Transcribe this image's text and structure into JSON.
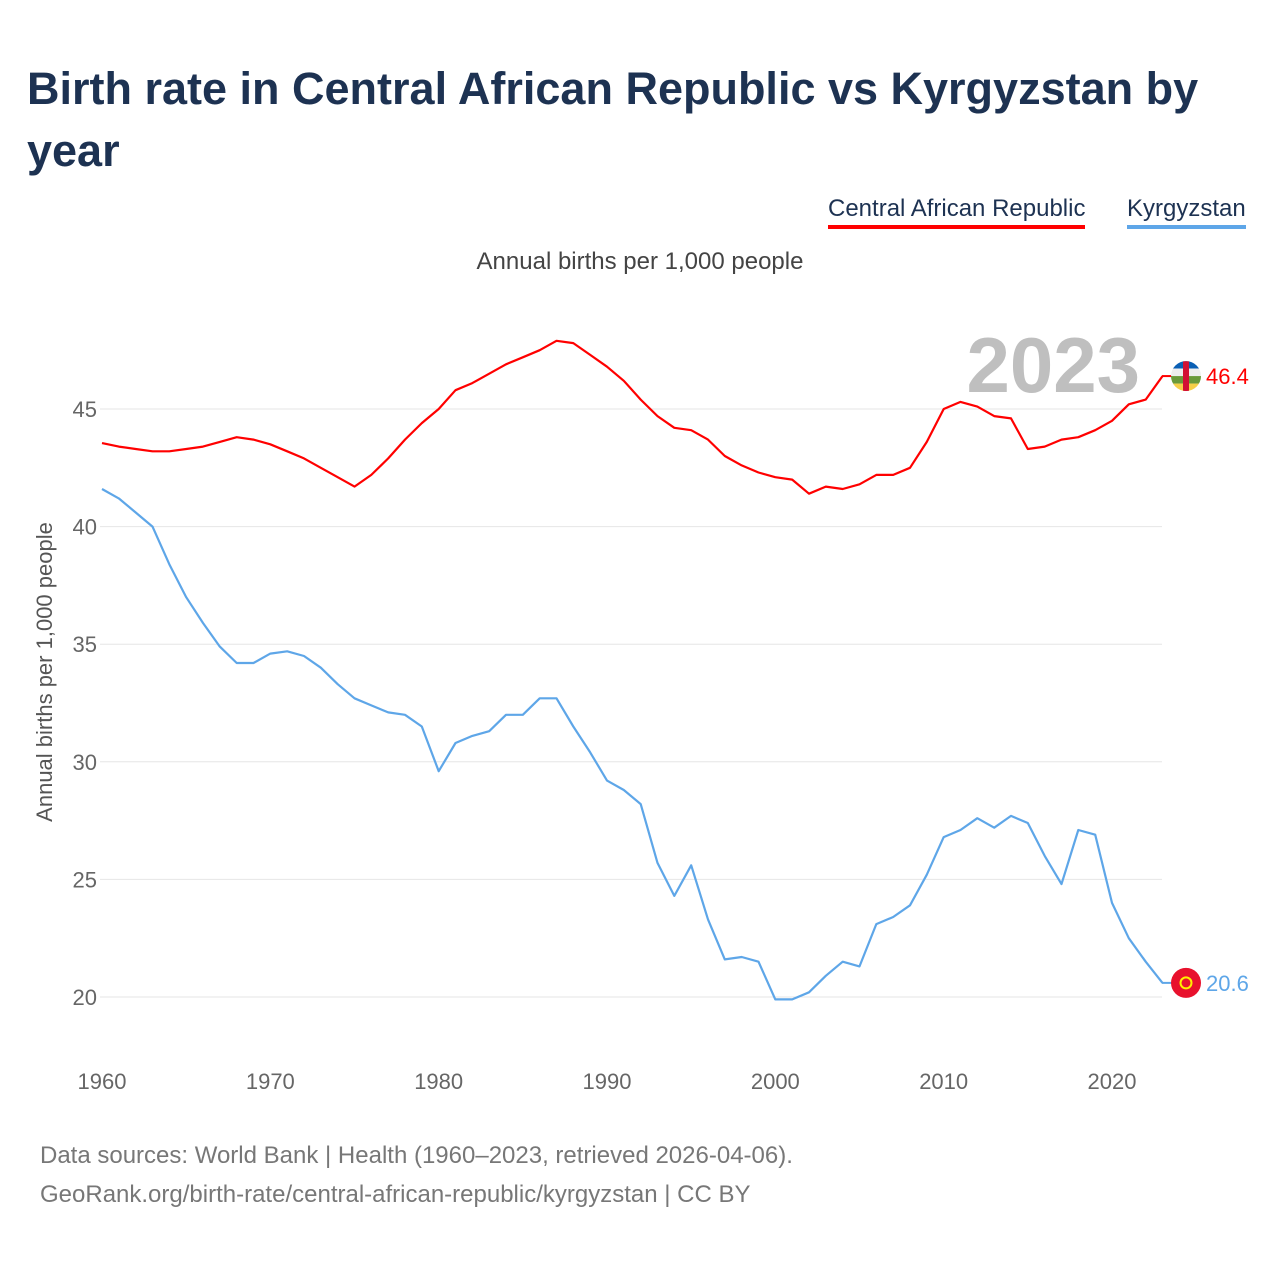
{
  "title": "Birth rate in Central African Republic vs Kyrgyzstan by year",
  "subtitle": "Annual births per 1,000 people",
  "year_label": "2023",
  "footer": {
    "line1": "Data sources: World Bank | Health (1960–2023, retrieved 2026-04-06).",
    "line2": "GeoRank.org/birth-rate/central-african-republic/kyrgyzstan | CC BY"
  },
  "chart_data": {
    "type": "line",
    "title": "Birth rate in Central African Republic vs Kyrgyzstan by year",
    "xlabel": "",
    "ylabel": "Annual births per 1,000 people",
    "xlim": [
      1960,
      2023
    ],
    "ylim": [
      20,
      45
    ],
    "xticks": [
      "1960",
      "1970",
      "1980",
      "1990",
      "2000",
      "2010",
      "2020"
    ],
    "yticks": [
      "20",
      "25",
      "30",
      "35",
      "40",
      "45"
    ],
    "grid": true,
    "legend_position": "top-right",
    "x_start": 1960,
    "series": [
      {
        "name": "Central African Republic",
        "color": "#ff0000",
        "end_label": "46.4",
        "flag": "central-african-republic-flag-icon",
        "values": [
          43.55,
          43.4,
          43.3,
          43.2,
          43.2,
          43.3,
          43.4,
          43.6,
          43.8,
          43.7,
          43.5,
          43.2,
          42.9,
          42.5,
          42.1,
          41.7,
          42.2,
          42.9,
          43.7,
          44.4,
          45.0,
          45.8,
          46.1,
          46.5,
          46.9,
          47.2,
          47.5,
          47.9,
          47.8,
          47.3,
          46.8,
          46.2,
          45.4,
          44.7,
          44.2,
          44.1,
          43.7,
          43.0,
          42.6,
          42.3,
          42.1,
          42.0,
          41.4,
          41.7,
          41.6,
          41.8,
          42.2,
          42.2,
          42.5,
          43.6,
          45.0,
          45.3,
          45.1,
          44.7,
          44.6,
          43.3,
          43.4,
          43.7,
          43.8,
          44.1,
          44.5,
          45.2,
          45.4,
          46.4
        ]
      },
      {
        "name": "Kyrgyzstan",
        "color": "#5ea6e8",
        "end_label": "20.6",
        "flag": "kyrgyzstan-flag-icon",
        "values": [
          41.6,
          41.2,
          40.6,
          40.0,
          38.4,
          37.0,
          35.9,
          34.9,
          34.2,
          34.2,
          34.6,
          34.7,
          34.5,
          34.0,
          33.3,
          32.7,
          32.4,
          32.1,
          32.0,
          31.5,
          29.6,
          30.8,
          31.1,
          31.3,
          32.0,
          32.0,
          32.7,
          32.7,
          31.5,
          30.4,
          29.2,
          28.8,
          28.2,
          25.7,
          24.3,
          25.6,
          23.3,
          21.6,
          21.7,
          21.5,
          19.9,
          19.9,
          20.2,
          20.9,
          21.5,
          21.3,
          23.1,
          23.4,
          23.9,
          25.2,
          26.8,
          27.1,
          27.6,
          27.2,
          27.7,
          27.4,
          26.0,
          24.8,
          27.1,
          26.9,
          24.0,
          22.5,
          21.5,
          20.6
        ]
      }
    ]
  }
}
